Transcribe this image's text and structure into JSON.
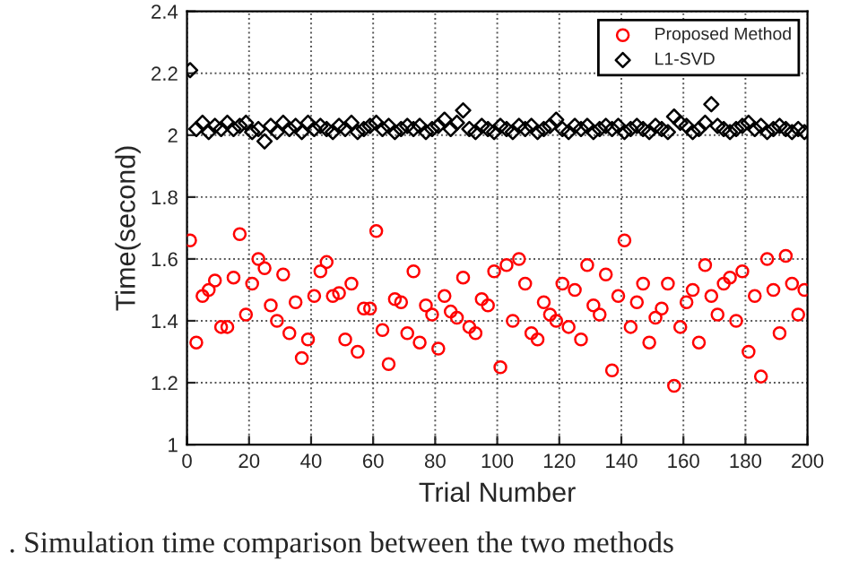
{
  "chart_data": {
    "type": "scatter",
    "xlabel": "Trial Number",
    "ylabel": "Time(second)",
    "xlim": [
      0,
      200
    ],
    "ylim": [
      1,
      2.4
    ],
    "xticks": [
      0,
      20,
      40,
      60,
      80,
      100,
      120,
      140,
      160,
      180,
      200
    ],
    "yticks": [
      1,
      1.2,
      1.4,
      1.6,
      1.8,
      2,
      2.2,
      2.4
    ],
    "grid": true,
    "legend": "top right",
    "annotations": [
      ". Simulation time comparison between the two methods"
    ],
    "series": [
      {
        "name": "Proposed Method",
        "color": "#ff0000",
        "marker": "circle",
        "x": [
          1,
          3,
          5,
          7,
          9,
          11,
          13,
          15,
          17,
          19,
          21,
          23,
          25,
          27,
          29,
          31,
          33,
          35,
          37,
          39,
          41,
          43,
          45,
          47,
          49,
          51,
          53,
          55,
          57,
          59,
          61,
          63,
          65,
          67,
          69,
          71,
          73,
          75,
          77,
          79,
          81,
          83,
          85,
          87,
          89,
          91,
          93,
          95,
          97,
          99,
          101,
          103,
          105,
          107,
          109,
          111,
          113,
          115,
          117,
          119,
          121,
          123,
          125,
          127,
          129,
          131,
          133,
          135,
          137,
          139,
          141,
          143,
          145,
          147,
          149,
          151,
          153,
          155,
          157,
          159,
          161,
          163,
          165,
          167,
          169,
          171,
          173,
          175,
          177,
          179,
          181,
          183,
          185,
          187,
          189,
          191,
          193,
          195,
          197,
          199
        ],
        "values": [
          1.66,
          1.33,
          1.48,
          1.5,
          1.53,
          1.38,
          1.38,
          1.54,
          1.68,
          1.42,
          1.52,
          1.6,
          1.57,
          1.45,
          1.4,
          1.55,
          1.36,
          1.46,
          1.28,
          1.34,
          1.48,
          1.56,
          1.59,
          1.48,
          1.49,
          1.34,
          1.52,
          1.3,
          1.44,
          1.44,
          1.69,
          1.37,
          1.26,
          1.47,
          1.46,
          1.36,
          1.56,
          1.33,
          1.45,
          1.42,
          1.31,
          1.48,
          1.43,
          1.41,
          1.54,
          1.38,
          1.36,
          1.47,
          1.45,
          1.56,
          1.25,
          1.58,
          1.4,
          1.6,
          1.52,
          1.36,
          1.34,
          1.46,
          1.42,
          1.4,
          1.52,
          1.38,
          1.5,
          1.34,
          1.58,
          1.45,
          1.42,
          1.55,
          1.24,
          1.48,
          1.66,
          1.38,
          1.46,
          1.52,
          1.33,
          1.41,
          1.44,
          1.52,
          1.19,
          1.38,
          1.46,
          1.5,
          1.33,
          1.58,
          1.48,
          1.42,
          1.52,
          1.54,
          1.4,
          1.56,
          1.3,
          1.48,
          1.22,
          1.6,
          1.5,
          1.36,
          1.61,
          1.52,
          1.42,
          1.5
        ]
      },
      {
        "name": "L1-SVD",
        "color": "#000000",
        "marker": "diamond",
        "x": [
          1,
          3,
          5,
          7,
          9,
          11,
          13,
          15,
          17,
          19,
          21,
          23,
          25,
          27,
          29,
          31,
          33,
          35,
          37,
          39,
          41,
          43,
          45,
          47,
          49,
          51,
          53,
          55,
          57,
          59,
          61,
          63,
          65,
          67,
          69,
          71,
          73,
          75,
          77,
          79,
          81,
          83,
          85,
          87,
          89,
          91,
          93,
          95,
          97,
          99,
          101,
          103,
          105,
          107,
          109,
          111,
          113,
          115,
          117,
          119,
          121,
          123,
          125,
          127,
          129,
          131,
          133,
          135,
          137,
          139,
          141,
          143,
          145,
          147,
          149,
          151,
          153,
          155,
          157,
          159,
          161,
          163,
          165,
          167,
          169,
          171,
          173,
          175,
          177,
          179,
          181,
          183,
          185,
          187,
          189,
          191,
          193,
          195,
          197,
          199
        ],
        "values": [
          2.21,
          2.02,
          2.04,
          2.01,
          2.03,
          2.02,
          2.04,
          2.02,
          2.03,
          2.04,
          2.01,
          2.02,
          1.98,
          2.03,
          2.01,
          2.04,
          2.02,
          2.03,
          2.01,
          2.04,
          2.02,
          2.03,
          2.02,
          2.01,
          2.03,
          2.02,
          2.04,
          2.01,
          2.02,
          2.03,
          2.04,
          2.02,
          2.03,
          2.01,
          2.02,
          2.03,
          2.02,
          2.03,
          2.01,
          2.02,
          2.03,
          2.05,
          2.02,
          2.04,
          2.08,
          2.02,
          2.01,
          2.03,
          2.02,
          2.01,
          2.03,
          2.02,
          2.01,
          2.03,
          2.02,
          2.03,
          2.01,
          2.02,
          2.03,
          2.05,
          2.02,
          2.01,
          2.03,
          2.02,
          2.03,
          2.01,
          2.02,
          2.03,
          2.02,
          2.03,
          2.01,
          2.02,
          2.03,
          2.02,
          2.01,
          2.03,
          2.02,
          2.01,
          2.06,
          2.04,
          2.03,
          2.01,
          2.02,
          2.04,
          2.1,
          2.03,
          2.02,
          2.01,
          2.02,
          2.03,
          2.04,
          2.02,
          2.03,
          2.01,
          2.02,
          2.03,
          2.02,
          2.01,
          2.02,
          2.01
        ]
      }
    ]
  }
}
